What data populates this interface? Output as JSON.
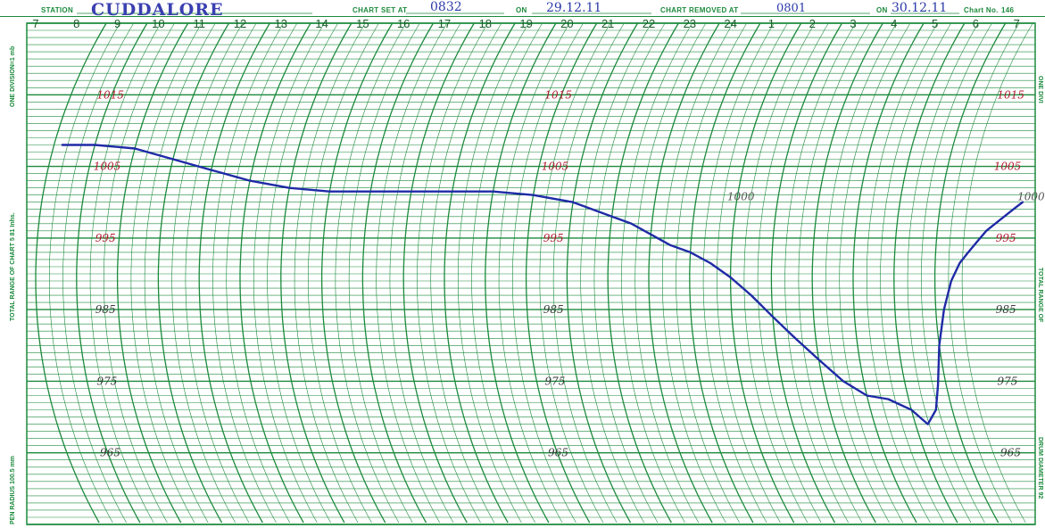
{
  "header": {
    "station_label": "STATION",
    "station_value": "CUDDALORE",
    "chart_set_label": "CHART SET AT",
    "chart_set_time": "0832",
    "on_label_1": "ON",
    "chart_set_date": "29.12.11",
    "chart_removed_label": "CHART REMOVED AT",
    "chart_removed_time": "0801",
    "on_label_2": "ON",
    "chart_removed_date": "30.12.11",
    "chart_no_label": "Chart No.",
    "chart_no_value": "146"
  },
  "side_labels": {
    "left_top": "ONE DIVISION=1 mb",
    "left_middle": "TOTAL RANGE OF CHART 5 81 Inhs.",
    "left_bottom": "PEN RADIUS 100.5 mm",
    "right_top": "ONE DIVI",
    "right_middle": "TOTAL RANGE OF",
    "right_bottom": "DRUM DIAMETER 92"
  },
  "colors": {
    "grid": "#1c8a3c",
    "trace": "#1f2aa6",
    "pressure_label": "#b01a2e",
    "paper": "#ffffff"
  },
  "chart_data": {
    "type": "line",
    "title": "",
    "xlabel": "",
    "ylabel": "",
    "x_ticks": [
      "7",
      "8",
      "9",
      "10",
      "11",
      "12",
      "13",
      "14",
      "15",
      "16",
      "17",
      "18",
      "19",
      "20",
      "21",
      "22",
      "23",
      "24",
      "1",
      "2",
      "3",
      "4",
      "5",
      "6",
      "7"
    ],
    "ylim": [
      955,
      1025
    ],
    "pressure_label_groups": [
      {
        "hour": "9",
        "labels": [
          "1015",
          "1005",
          "995",
          "985",
          "975",
          "965"
        ]
      },
      {
        "hour": "20",
        "labels": [
          "1015",
          "1005",
          "995",
          "985",
          "975",
          "965"
        ]
      },
      {
        "hour": "7",
        "labels": [
          "1015",
          "1005",
          "995",
          "985",
          "975",
          "965"
        ]
      }
    ],
    "annotations": [
      {
        "text": "1000",
        "hour_index": 17.1,
        "pressure": 1000
      },
      {
        "text": "1000",
        "hour_index": 24.2,
        "pressure": 1000
      }
    ],
    "series": [
      {
        "x": [
          0.2,
          1.0,
          2.0,
          3.0,
          4.0,
          5.0,
          6.0,
          7.0,
          8.0,
          9.0,
          10.0,
          11.0,
          12.0,
          13.0,
          14.0,
          14.5,
          15.0,
          15.5,
          16.0,
          16.5,
          17.0,
          17.5,
          18.0,
          18.5,
          19.0,
          19.5,
          20.0,
          20.5,
          21.0,
          21.3,
          21.6,
          21.8,
          22.0,
          22.2,
          22.4,
          22.6,
          22.8,
          23.0,
          23.2,
          23.5,
          23.8,
          24.0
        ],
        "values": [
          1008,
          1008,
          1007.5,
          1006,
          1004.5,
          1003,
          1002,
          1001.5,
          1001.5,
          1001.5,
          1001.5,
          1001.5,
          1001,
          1000,
          998,
          997,
          995.5,
          994,
          993,
          991.5,
          989.5,
          987,
          984,
          981,
          978,
          975,
          973,
          972.5,
          971,
          969,
          971,
          974.5,
          980,
          985,
          989,
          991.5,
          993,
          994.5,
          996,
          997.5,
          999,
          1000
        ]
      }
    ]
  }
}
